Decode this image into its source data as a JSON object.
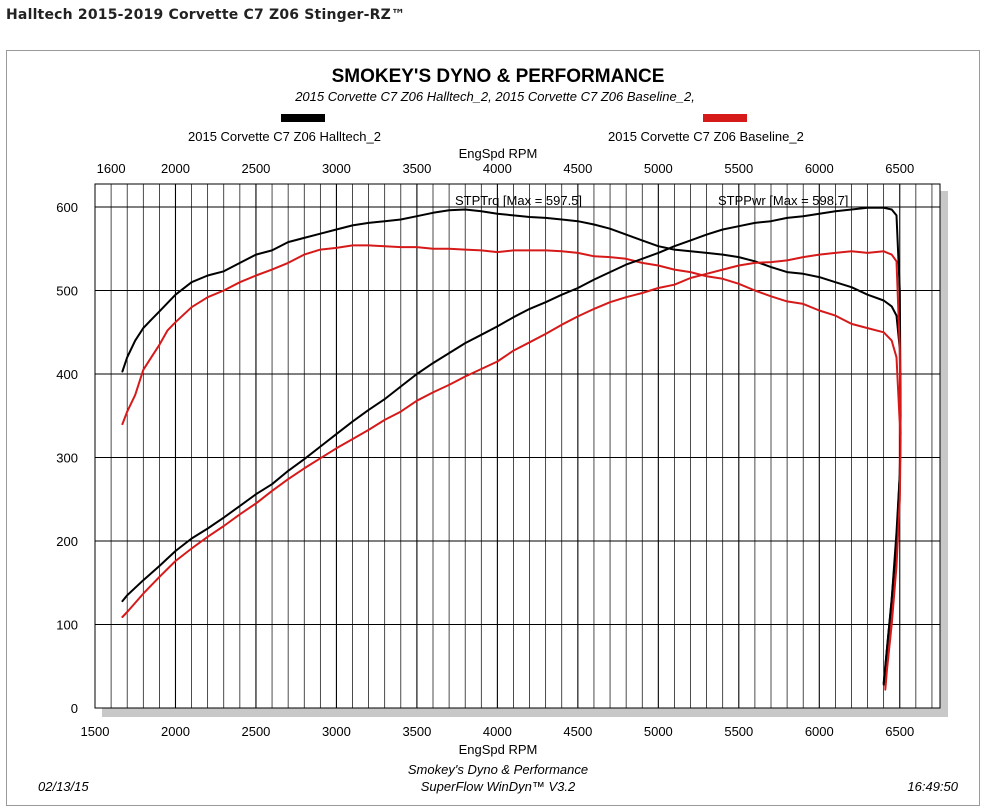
{
  "page": {
    "title": "Halltech 2015-2019 Corvette C7 Z06 Stinger-RZ™"
  },
  "footer": {
    "date": "02/13/15",
    "time": "16:49:50",
    "line1": "Smokey's Dyno & Performance",
    "line2": "SuperFlow WinDyn™ V3.2"
  },
  "chart_data": {
    "type": "line",
    "title": "SMOKEY'S DYNO & PERFORMANCE",
    "subtitle": "2015 Corvette C7 Z06 Halltech_2, 2015 Corvette C7 Z06 Baseline_2,",
    "xlabel": "EngSpd RPM",
    "ylabel": "",
    "xlim": [
      1500,
      6750
    ],
    "ylim": [
      0,
      620
    ],
    "x_ticks": [
      1500,
      2000,
      2500,
      3000,
      3500,
      4000,
      4500,
      5000,
      5500,
      6000,
      6500
    ],
    "y_ticks": [
      0,
      100,
      200,
      300,
      400,
      500,
      600
    ],
    "top_x_ticks": [
      1600,
      2000,
      2500,
      3000,
      3500,
      4000,
      4500,
      5000,
      5500,
      6000,
      6500
    ],
    "grid": true,
    "legend": {
      "placement": "top",
      "entries": [
        {
          "name": "2015 Corvette C7 Z06 Halltech_2",
          "color": "#000000"
        },
        {
          "name": "2015 Corvette C7 Z06 Baseline_2",
          "color": "#d61a1a"
        }
      ]
    },
    "annotations": {
      "torque": "STPTrq [Max = 597.5]",
      "power": "STPPwr [Max = 598.7]"
    },
    "series": [
      {
        "name": "2015 Corvette C7 Z06 Halltech_2",
        "metric": "STPTrq",
        "color": "#000000",
        "points": [
          [
            1670,
            403
          ],
          [
            1700,
            420
          ],
          [
            1750,
            440
          ],
          [
            1800,
            455
          ],
          [
            1850,
            465
          ],
          [
            1900,
            475
          ],
          [
            2000,
            495
          ],
          [
            2100,
            510
          ],
          [
            2200,
            518
          ],
          [
            2300,
            523
          ],
          [
            2400,
            533
          ],
          [
            2500,
            543
          ],
          [
            2600,
            548
          ],
          [
            2700,
            558
          ],
          [
            2800,
            563
          ],
          [
            2900,
            568
          ],
          [
            3000,
            573
          ],
          [
            3100,
            578
          ],
          [
            3200,
            581
          ],
          [
            3300,
            583
          ],
          [
            3400,
            585
          ],
          [
            3500,
            589
          ],
          [
            3600,
            593
          ],
          [
            3700,
            596
          ],
          [
            3800,
            597
          ],
          [
            3900,
            595
          ],
          [
            4000,
            592
          ],
          [
            4100,
            590
          ],
          [
            4200,
            588
          ],
          [
            4300,
            587
          ],
          [
            4400,
            585
          ],
          [
            4500,
            583
          ],
          [
            4600,
            579
          ],
          [
            4700,
            574
          ],
          [
            4800,
            567
          ],
          [
            4900,
            560
          ],
          [
            5000,
            553
          ],
          [
            5100,
            549
          ],
          [
            5200,
            547
          ],
          [
            5300,
            545
          ],
          [
            5400,
            543
          ],
          [
            5500,
            540
          ],
          [
            5600,
            535
          ],
          [
            5700,
            528
          ],
          [
            5800,
            522
          ],
          [
            5900,
            520
          ],
          [
            6000,
            516
          ],
          [
            6100,
            510
          ],
          [
            6200,
            504
          ],
          [
            6300,
            495
          ],
          [
            6400,
            488
          ],
          [
            6450,
            481
          ],
          [
            6480,
            470
          ],
          [
            6500,
            430
          ],
          [
            6505,
            330
          ],
          [
            6500,
            280
          ],
          [
            6480,
            210
          ],
          [
            6450,
            130
          ],
          [
            6420,
            70
          ],
          [
            6400,
            30
          ]
        ]
      },
      {
        "name": "2015 Corvette C7 Z06 Baseline_2",
        "metric": "STPTrq",
        "color": "#d61a1a",
        "points": [
          [
            1670,
            340
          ],
          [
            1700,
            355
          ],
          [
            1750,
            375
          ],
          [
            1800,
            405
          ],
          [
            1850,
            420
          ],
          [
            1900,
            435
          ],
          [
            1950,
            452
          ],
          [
            2000,
            462
          ],
          [
            2100,
            480
          ],
          [
            2200,
            492
          ],
          [
            2300,
            500
          ],
          [
            2400,
            510
          ],
          [
            2500,
            518
          ],
          [
            2600,
            525
          ],
          [
            2700,
            533
          ],
          [
            2800,
            543
          ],
          [
            2900,
            549
          ],
          [
            3000,
            551
          ],
          [
            3100,
            554
          ],
          [
            3200,
            554
          ],
          [
            3300,
            553
          ],
          [
            3400,
            552
          ],
          [
            3500,
            552
          ],
          [
            3600,
            550
          ],
          [
            3700,
            550
          ],
          [
            3800,
            549
          ],
          [
            3900,
            548
          ],
          [
            4000,
            546
          ],
          [
            4100,
            548
          ],
          [
            4200,
            548
          ],
          [
            4300,
            548
          ],
          [
            4400,
            547
          ],
          [
            4500,
            545
          ],
          [
            4600,
            541
          ],
          [
            4700,
            540
          ],
          [
            4800,
            538
          ],
          [
            4900,
            533
          ],
          [
            5000,
            530
          ],
          [
            5100,
            525
          ],
          [
            5200,
            522
          ],
          [
            5300,
            517
          ],
          [
            5400,
            514
          ],
          [
            5500,
            508
          ],
          [
            5600,
            500
          ],
          [
            5700,
            493
          ],
          [
            5800,
            487
          ],
          [
            5900,
            484
          ],
          [
            6000,
            476
          ],
          [
            6100,
            470
          ],
          [
            6200,
            460
          ],
          [
            6300,
            455
          ],
          [
            6400,
            450
          ],
          [
            6450,
            440
          ],
          [
            6480,
            420
          ],
          [
            6500,
            340
          ],
          [
            6500,
            260
          ],
          [
            6480,
            180
          ],
          [
            6450,
            110
          ],
          [
            6420,
            55
          ],
          [
            6410,
            25
          ]
        ]
      },
      {
        "name": "2015 Corvette C7 Z06 Halltech_2",
        "metric": "STPPwr",
        "color": "#000000",
        "points": [
          [
            1670,
            128
          ],
          [
            1700,
            135
          ],
          [
            1800,
            153
          ],
          [
            1900,
            170
          ],
          [
            2000,
            188
          ],
          [
            2100,
            203
          ],
          [
            2200,
            215
          ],
          [
            2300,
            228
          ],
          [
            2400,
            242
          ],
          [
            2500,
            256
          ],
          [
            2600,
            268
          ],
          [
            2700,
            284
          ],
          [
            2800,
            298
          ],
          [
            2900,
            313
          ],
          [
            3000,
            328
          ],
          [
            3100,
            343
          ],
          [
            3200,
            357
          ],
          [
            3300,
            370
          ],
          [
            3400,
            385
          ],
          [
            3500,
            400
          ],
          [
            3600,
            413
          ],
          [
            3700,
            425
          ],
          [
            3800,
            437
          ],
          [
            3900,
            447
          ],
          [
            4000,
            457
          ],
          [
            4100,
            468
          ],
          [
            4200,
            478
          ],
          [
            4300,
            486
          ],
          [
            4400,
            495
          ],
          [
            4500,
            503
          ],
          [
            4600,
            513
          ],
          [
            4700,
            522
          ],
          [
            4800,
            531
          ],
          [
            4900,
            538
          ],
          [
            5000,
            545
          ],
          [
            5100,
            553
          ],
          [
            5200,
            560
          ],
          [
            5300,
            567
          ],
          [
            5400,
            573
          ],
          [
            5500,
            577
          ],
          [
            5600,
            581
          ],
          [
            5700,
            583
          ],
          [
            5800,
            587
          ],
          [
            5900,
            589
          ],
          [
            6000,
            592
          ],
          [
            6100,
            595
          ],
          [
            6200,
            597
          ],
          [
            6300,
            599
          ],
          [
            6400,
            599
          ],
          [
            6450,
            597
          ],
          [
            6480,
            590
          ],
          [
            6500,
            500
          ],
          [
            6505,
            350
          ],
          [
            6500,
            280
          ],
          [
            6480,
            200
          ],
          [
            6450,
            130
          ],
          [
            6420,
            70
          ],
          [
            6400,
            28
          ]
        ]
      },
      {
        "name": "2015 Corvette C7 Z06 Baseline_2",
        "metric": "STPPwr",
        "color": "#d61a1a",
        "points": [
          [
            1670,
            109
          ],
          [
            1700,
            115
          ],
          [
            1800,
            137
          ],
          [
            1900,
            157
          ],
          [
            2000,
            176
          ],
          [
            2100,
            191
          ],
          [
            2200,
            205
          ],
          [
            2300,
            218
          ],
          [
            2400,
            232
          ],
          [
            2500,
            245
          ],
          [
            2600,
            260
          ],
          [
            2700,
            274
          ],
          [
            2800,
            287
          ],
          [
            2900,
            299
          ],
          [
            3000,
            311
          ],
          [
            3100,
            322
          ],
          [
            3200,
            333
          ],
          [
            3300,
            345
          ],
          [
            3400,
            355
          ],
          [
            3500,
            368
          ],
          [
            3600,
            378
          ],
          [
            3700,
            387
          ],
          [
            3800,
            397
          ],
          [
            3900,
            406
          ],
          [
            4000,
            415
          ],
          [
            4100,
            428
          ],
          [
            4200,
            438
          ],
          [
            4300,
            448
          ],
          [
            4400,
            459
          ],
          [
            4500,
            469
          ],
          [
            4600,
            478
          ],
          [
            4700,
            486
          ],
          [
            4800,
            492
          ],
          [
            4900,
            497
          ],
          [
            5000,
            503
          ],
          [
            5100,
            507
          ],
          [
            5200,
            515
          ],
          [
            5300,
            520
          ],
          [
            5400,
            525
          ],
          [
            5500,
            530
          ],
          [
            5600,
            533
          ],
          [
            5700,
            534
          ],
          [
            5800,
            536
          ],
          [
            5900,
            540
          ],
          [
            6000,
            543
          ],
          [
            6100,
            545
          ],
          [
            6200,
            547
          ],
          [
            6300,
            545
          ],
          [
            6400,
            547
          ],
          [
            6450,
            543
          ],
          [
            6480,
            535
          ],
          [
            6500,
            430
          ],
          [
            6505,
            320
          ],
          [
            6500,
            250
          ],
          [
            6480,
            170
          ],
          [
            6450,
            100
          ],
          [
            6420,
            45
          ],
          [
            6410,
            22
          ]
        ]
      }
    ]
  }
}
